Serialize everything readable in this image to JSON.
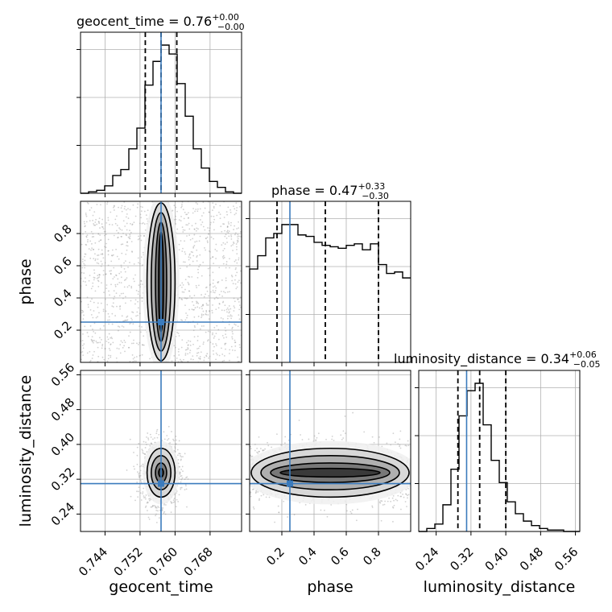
{
  "chart_data": {
    "type": "corner",
    "parameters": [
      "geocent_time",
      "phase",
      "luminosity_distance"
    ],
    "truths": {
      "geocent_time": 0.7568,
      "phase": 0.25,
      "luminosity_distance": 0.31
    },
    "grid": true,
    "truth_color": "#3b7bbd",
    "titles": [
      {
        "prefix": "geocent_time = 0.76",
        "plus": "+0.00",
        "minus": "−0.00"
      },
      {
        "prefix": "phase = 0.47",
        "plus": "+0.33",
        "minus": "−0.30"
      },
      {
        "prefix": "luminosity_distance = 0.34",
        "plus": "+0.06",
        "minus": "−0.05"
      }
    ],
    "axes": {
      "geocent_time": {
        "label": "geocent_time",
        "range": [
          0.7384,
          0.7752
        ],
        "ticks": [
          0.744,
          0.752,
          0.76,
          0.768
        ],
        "tick_labels": [
          "0.744",
          "0.752",
          "0.760",
          "0.768"
        ]
      },
      "phase": {
        "label": "phase",
        "range": [
          0.0,
          1.0
        ],
        "ticks": [
          0.2,
          0.4,
          0.6,
          0.8
        ],
        "tick_labels": [
          "0.2",
          "0.4",
          "0.6",
          "0.8"
        ]
      },
      "luminosity_distance": {
        "label": "luminosity_distance",
        "range": [
          0.2,
          0.57
        ],
        "ticks": [
          0.24,
          0.32,
          0.4,
          0.48,
          0.56
        ],
        "tick_labels": [
          "0.24",
          "0.32",
          "0.40",
          "0.48",
          "0.56"
        ]
      }
    },
    "histograms": {
      "geocent_time": {
        "bin_edges": [
          0.7384,
          0.74024,
          0.74208,
          0.74392,
          0.74576,
          0.7476,
          0.74944,
          0.75128,
          0.75312,
          0.75496,
          0.7568,
          0.75864,
          0.76048,
          0.76232,
          0.76416,
          0.766,
          0.76784,
          0.76968,
          0.77152,
          0.77336,
          0.7752
        ],
        "counts": [
          0.0,
          0.01,
          0.02,
          0.05,
          0.12,
          0.16,
          0.3,
          0.44,
          0.73,
          0.89,
          1.0,
          0.94,
          0.74,
          0.52,
          0.3,
          0.17,
          0.08,
          0.04,
          0.01,
          0.0
        ],
        "quantiles": [
          0.7532,
          0.7568,
          0.7604
        ]
      },
      "phase": {
        "bin_edges": [
          0.0,
          0.05,
          0.1,
          0.15,
          0.2,
          0.25,
          0.3,
          0.35,
          0.4,
          0.45,
          0.5,
          0.55,
          0.6,
          0.65,
          0.7,
          0.75,
          0.8,
          0.85,
          0.9,
          0.95,
          1.0
        ],
        "counts": [
          0.63,
          0.72,
          0.84,
          0.87,
          0.93,
          0.93,
          0.86,
          0.85,
          0.81,
          0.79,
          0.78,
          0.77,
          0.79,
          0.8,
          0.76,
          0.8,
          0.66,
          0.6,
          0.61,
          0.57
        ],
        "quantiles": [
          0.17,
          0.47,
          0.8
        ]
      },
      "luminosity_distance": {
        "bin_edges": [
          0.2,
          0.2185,
          0.237,
          0.2555,
          0.274,
          0.2925,
          0.311,
          0.3295,
          0.348,
          0.3665,
          0.385,
          0.4035,
          0.422,
          0.4405,
          0.459,
          0.4775,
          0.496,
          0.5145,
          0.533,
          0.5515,
          0.57
        ],
        "counts": [
          0.0,
          0.02,
          0.05,
          0.18,
          0.42,
          0.78,
          0.95,
          1.0,
          0.72,
          0.48,
          0.33,
          0.2,
          0.12,
          0.07,
          0.04,
          0.02,
          0.01,
          0.01,
          0.0,
          0.0
        ],
        "quantiles": [
          0.29,
          0.34,
          0.4
        ]
      }
    }
  }
}
